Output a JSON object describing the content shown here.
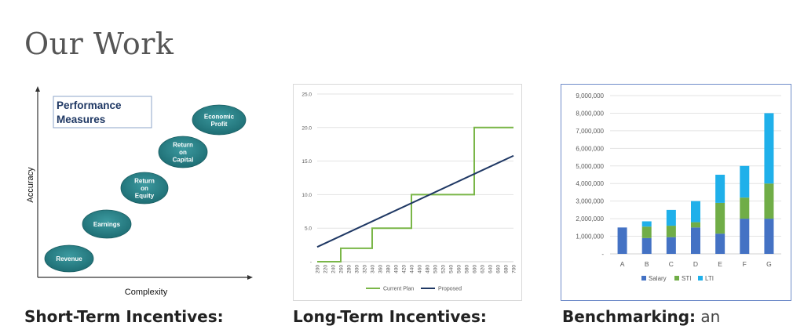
{
  "page": {
    "title": "Our Work"
  },
  "cards": [
    {
      "caption_bold": "Short-Term Incentives:",
      "caption_rest": ""
    },
    {
      "caption_bold": "Long-Term Incentives:",
      "caption_rest": ""
    },
    {
      "caption_bold": "Benchmarking:",
      "caption_rest": " an"
    }
  ],
  "colors": {
    "bubble": "#2f8a90",
    "bubble_dark": "#1f6a70",
    "green": "#7ab648",
    "navy": "#1f3864",
    "salary": "#4472c4",
    "sti": "#70ad47",
    "lti": "#1fb0ea"
  },
  "chart_data": [
    {
      "type": "diagram",
      "title": "Performance Measures",
      "xlabel": "Complexity",
      "ylabel": "Accuracy",
      "measures": [
        "Revenue",
        "Earnings",
        "Return on Equity",
        "Return on Capital",
        "Economic Profit"
      ]
    },
    {
      "type": "line",
      "title": "",
      "x": [
        200,
        220,
        240,
        260,
        280,
        300,
        320,
        340,
        360,
        380,
        400,
        420,
        440,
        460,
        480,
        500,
        520,
        540,
        560,
        580,
        600,
        620,
        640,
        660,
        680,
        700
      ],
      "x_tick_labels": [
        "200",
        "220",
        "240",
        "260",
        "280",
        "300",
        "320",
        "340",
        "360",
        "380",
        "400",
        "420",
        "440",
        "460",
        "480",
        "500",
        "520",
        "540",
        "560",
        "580",
        "600",
        "620",
        "640",
        "660",
        "680",
        "700"
      ],
      "y_tick_labels": [
        "-",
        "5.0",
        "10.0",
        "15.0",
        "20.0",
        "25.0"
      ],
      "ylim": [
        0,
        25
      ],
      "legend_position": "bottom",
      "series": [
        {
          "name": "Current Plan",
          "x": [
            200,
            260,
            260,
            340,
            340,
            420,
            420,
            440,
            440,
            600,
            600,
            700
          ],
          "y": [
            0,
            0,
            2,
            2,
            5,
            5,
            5,
            5,
            10,
            10,
            20,
            20
          ]
        },
        {
          "name": "Proposed",
          "x": [
            200,
            700
          ],
          "y": [
            2.2,
            15.8
          ]
        }
      ]
    },
    {
      "type": "bar",
      "stacked": true,
      "title": "",
      "categories": [
        "A",
        "B",
        "C",
        "D",
        "E",
        "F",
        "G"
      ],
      "y_tick_labels": [
        "-",
        "1,000,000",
        "2,000,000",
        "3,000,000",
        "4,000,000",
        "5,000,000",
        "6,000,000",
        "7,000,000",
        "8,000,000",
        "9,000,000"
      ],
      "ylim": [
        0,
        9000000
      ],
      "legend_position": "bottom",
      "series": [
        {
          "name": "Salary",
          "values": [
            1500000,
            900000,
            950000,
            1500000,
            1150000,
            2000000,
            2000000
          ]
        },
        {
          "name": "STI",
          "values": [
            0,
            650000,
            650000,
            300000,
            1750000,
            1200000,
            2000000
          ]
        },
        {
          "name": "LTI",
          "values": [
            0,
            300000,
            900000,
            1200000,
            1600000,
            1800000,
            4000000
          ]
        }
      ]
    }
  ]
}
